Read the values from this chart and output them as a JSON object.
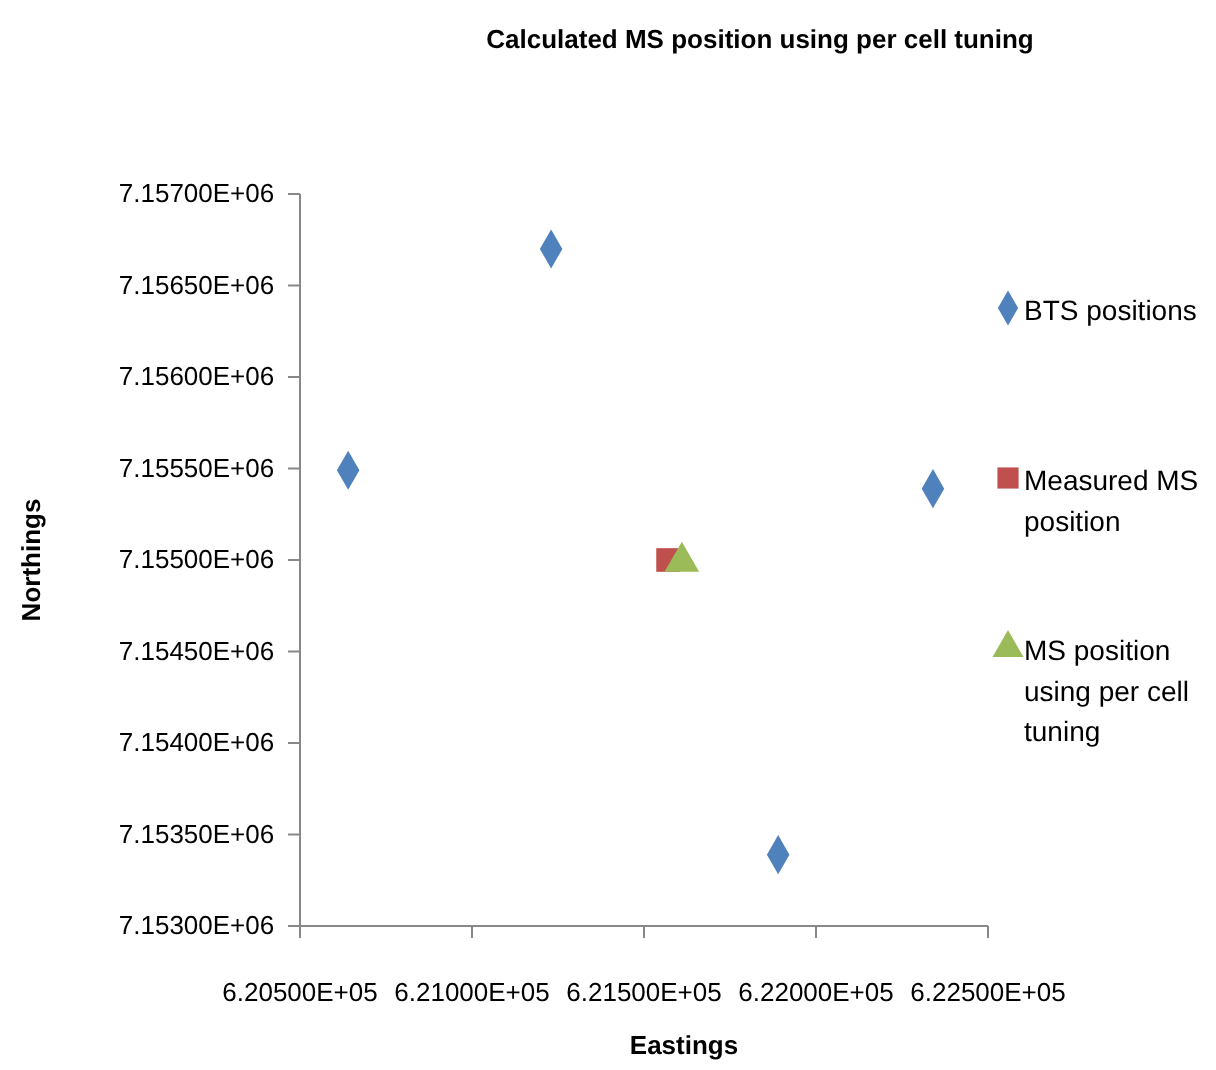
{
  "chart_data": {
    "type": "scatter",
    "title": "Calculated MS position using per cell tuning",
    "xlabel": "Eastings",
    "ylabel": "Northings",
    "xlim": [
      620500,
      622500
    ],
    "xticks": [
      {
        "value": 620500,
        "label": "6.20500E+05"
      },
      {
        "value": 621000,
        "label": "6.21000E+05"
      },
      {
        "value": 621500,
        "label": "6.21500E+05"
      },
      {
        "value": 622000,
        "label": "6.22000E+05"
      },
      {
        "value": 622500,
        "label": "6.22500E+05"
      }
    ],
    "ylim": [
      7153000,
      7157000
    ],
    "yticks": [
      {
        "value": 7153000,
        "label": "7.15300E+06"
      },
      {
        "value": 7153500,
        "label": "7.15350E+06"
      },
      {
        "value": 7154000,
        "label": "7.15400E+06"
      },
      {
        "value": 7154500,
        "label": "7.15450E+06"
      },
      {
        "value": 7155000,
        "label": "7.15500E+06"
      },
      {
        "value": 7155500,
        "label": "7.15550E+06"
      },
      {
        "value": 7156000,
        "label": "7.15600E+06"
      },
      {
        "value": 7156500,
        "label": "7.15650E+06"
      },
      {
        "value": 7157000,
        "label": "7.15700E+06"
      }
    ],
    "grid": false,
    "legend": "right",
    "series": [
      {
        "name": "BTS positions",
        "color": "#4f81bd",
        "marker": "diamond",
        "x": [
          620640,
          621230,
          622340,
          621890
        ],
        "values": [
          7155490,
          7156700,
          7155390,
          7153390
        ]
      },
      {
        "name": "Measured MS position",
        "color": "#c0504d",
        "marker": "square",
        "x": [
          621570
        ],
        "values": [
          7155000
        ]
      },
      {
        "name": "MS position using per cell tuning",
        "color": "#9bbb59",
        "marker": "triangle",
        "x": [
          621610
        ],
        "values": [
          7154990
        ]
      }
    ]
  }
}
